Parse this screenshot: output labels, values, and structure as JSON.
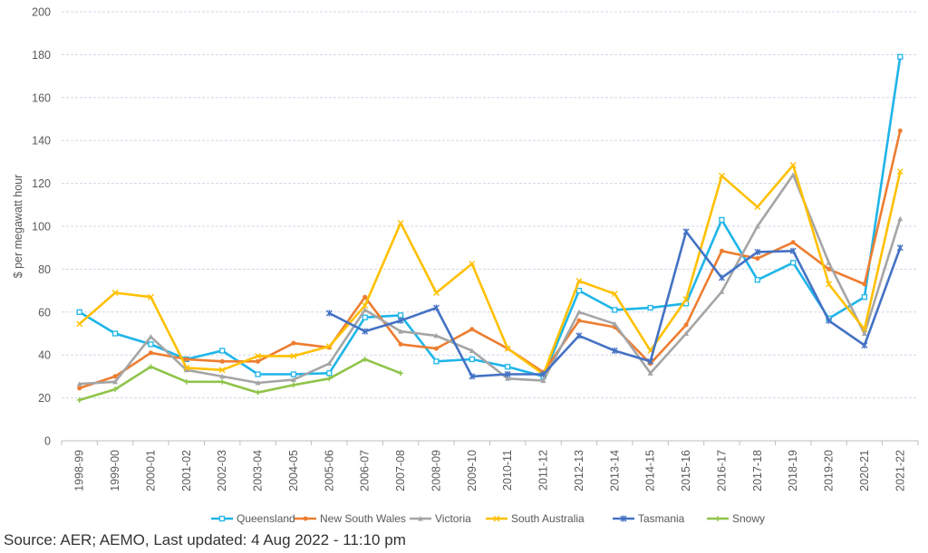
{
  "source_text": "Source: AER; AEMO, Last updated: 4 Aug 2022 - 11:10 pm",
  "chart_data": {
    "type": "line",
    "title": "",
    "xlabel": "",
    "ylabel": "$ per megawatt hour",
    "ylim": [
      0,
      200
    ],
    "yticks": [
      0,
      20,
      40,
      60,
      80,
      100,
      120,
      140,
      160,
      180,
      200
    ],
    "grid": true,
    "legend_position": "bottom",
    "categories": [
      "1998-99",
      "1999-00",
      "2000-01",
      "2001-02",
      "2002-03",
      "2003-04",
      "2004-05",
      "2005-06",
      "2006-07",
      "2007-08",
      "2008-09",
      "2009-10",
      "2010-11",
      "2011-12",
      "2012-13",
      "2013-14",
      "2014-15",
      "2015-16",
      "2016-17",
      "2017-18",
      "2018-19",
      "2019-20",
      "2020-21",
      "2021-22"
    ],
    "series": [
      {
        "name": "Queensland",
        "color": "#1fb5e8",
        "marker": "square",
        "values": [
          60,
          50,
          45,
          38,
          42,
          31,
          31,
          31.5,
          57.5,
          58.5,
          37,
          38,
          34.5,
          30,
          70,
          61,
          62,
          64,
          103,
          75,
          83,
          57,
          67,
          179
        ]
      },
      {
        "name": "New South Wales",
        "color": "#ed7d31",
        "marker": "circle",
        "values": [
          24.5,
          30,
          41,
          38,
          37,
          37,
          45.5,
          43.5,
          67,
          45,
          43,
          52,
          43,
          32,
          56,
          53,
          36,
          54,
          88.5,
          85,
          92.5,
          80,
          73,
          144.5
        ]
      },
      {
        "name": "Victoria",
        "color": "#a5a5a5",
        "marker": "triangle",
        "values": [
          26.5,
          27.5,
          48.5,
          33,
          30,
          27,
          28.5,
          36,
          61,
          51,
          49,
          42,
          29,
          28,
          60,
          54.5,
          31.5,
          50,
          69.5,
          100,
          124,
          83,
          50,
          103.5
        ]
      },
      {
        "name": "South Australia",
        "color": "#ffc000",
        "marker": "x",
        "values": [
          54.5,
          69,
          67,
          34,
          33,
          39.5,
          39.5,
          44,
          63,
          101.5,
          69,
          82.5,
          43,
          31,
          74.5,
          68.5,
          42,
          66,
          123.5,
          109,
          128.5,
          73,
          52,
          125.5
        ]
      },
      {
        "name": "Tasmania",
        "color": "#4472c4",
        "marker": "star",
        "values": [
          null,
          null,
          null,
          null,
          null,
          null,
          null,
          59.5,
          51,
          56,
          62,
          30,
          31,
          31,
          49,
          42,
          37,
          97.5,
          76,
          88,
          88.5,
          56,
          44.5,
          90
        ]
      },
      {
        "name": "Snowy",
        "color": "#8fc44a",
        "marker": "plus",
        "values": [
          19,
          24,
          34.5,
          27.5,
          27.5,
          22.5,
          26,
          29,
          38,
          31.5,
          null,
          null,
          null,
          null,
          null,
          null,
          null,
          null,
          null,
          null,
          null,
          null,
          null,
          null
        ]
      }
    ]
  }
}
